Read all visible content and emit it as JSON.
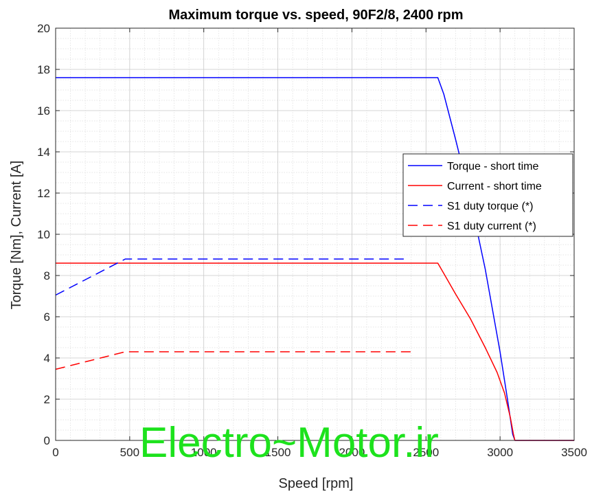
{
  "chart_data": {
    "type": "line",
    "title": "Maximum torque vs. speed, 90F2/8, 2400 rpm",
    "xlabel": "Speed [rpm]",
    "ylabel": "Torque [Nm], Current [A]",
    "xlim": [
      0,
      3500
    ],
    "ylim": [
      0,
      20
    ],
    "x_ticks": [
      0,
      500,
      1000,
      1500,
      2000,
      2500,
      3000,
      3500
    ],
    "y_ticks": [
      0,
      2,
      4,
      6,
      8,
      10,
      12,
      14,
      16,
      18,
      20
    ],
    "grid": true,
    "minor_grid": true,
    "legend_position": "right",
    "series": [
      {
        "name": "Torque - short time",
        "color": "#0000ff",
        "style": "solid",
        "x": [
          0,
          2580,
          2620,
          2700,
          2800,
          2900,
          3000,
          3050,
          3085,
          3100,
          3500
        ],
        "y": [
          17.6,
          17.6,
          16.8,
          14.6,
          11.7,
          8.3,
          4.3,
          2.0,
          0.3,
          0.0,
          0.0
        ]
      },
      {
        "name": "Current - short time",
        "color": "#ff0000",
        "style": "solid",
        "x": [
          0,
          2580,
          2620,
          2700,
          2800,
          2900,
          2980,
          3030,
          3070,
          3090,
          3100,
          3500
        ],
        "y": [
          8.6,
          8.6,
          8.1,
          7.1,
          5.9,
          4.5,
          3.3,
          2.3,
          1.1,
          0.3,
          0.0,
          0.0
        ]
      },
      {
        "name": "S1 duty torque (*)",
        "color": "#0000ff",
        "style": "dashed",
        "x": [
          0,
          470,
          2350
        ],
        "y": [
          7.05,
          8.8,
          8.8
        ]
      },
      {
        "name": "S1 duty current (*)",
        "color": "#ff0000",
        "style": "dashed",
        "x": [
          0,
          470,
          2400
        ],
        "y": [
          3.45,
          4.3,
          4.3
        ]
      }
    ],
    "watermark": "Electro~Motor.ir"
  }
}
